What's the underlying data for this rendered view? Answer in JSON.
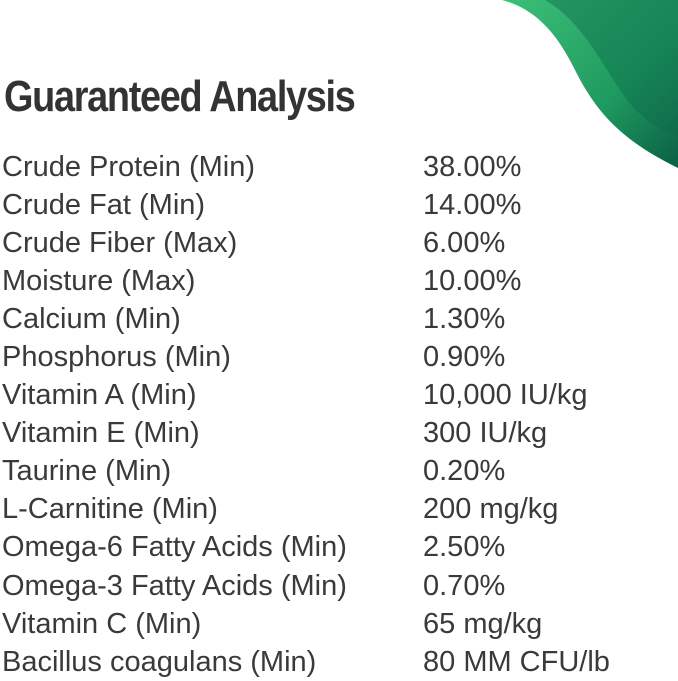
{
  "title": "Guaranteed Analysis",
  "colors": {
    "accent_dark": "#0b5e45",
    "accent_light": "#2fb06c",
    "text": "#333333"
  },
  "rows": [
    {
      "name": "Crude Protein (Min)",
      "value": "38.00%"
    },
    {
      "name": "Crude Fat (Min)",
      "value": "14.00%"
    },
    {
      "name": "Crude Fiber (Max)",
      "value": "6.00%"
    },
    {
      "name": "Moisture (Max)",
      "value": "10.00%"
    },
    {
      "name": "Calcium (Min)",
      "value": "1.30%"
    },
    {
      "name": "Phosphorus (Min)",
      "value": "0.90%"
    },
    {
      "name": "Vitamin A (Min)",
      "value": "10,000 IU/kg"
    },
    {
      "name": "Vitamin E (Min)",
      "value": "300 IU/kg"
    },
    {
      "name": "Taurine (Min)",
      "value": "0.20%"
    },
    {
      "name": "L-Carnitine (Min)",
      "value": "200 mg/kg"
    },
    {
      "name": "Omega-6 Fatty Acids (Min)",
      "value": "2.50%"
    },
    {
      "name": "Omega-3 Fatty Acids (Min)",
      "value": "0.70%"
    },
    {
      "name": "Vitamin C (Min)",
      "value": "65 mg/kg"
    },
    {
      "name": "Bacillus coagulans (Min)",
      "value": "80 MM CFU/lb"
    }
  ]
}
